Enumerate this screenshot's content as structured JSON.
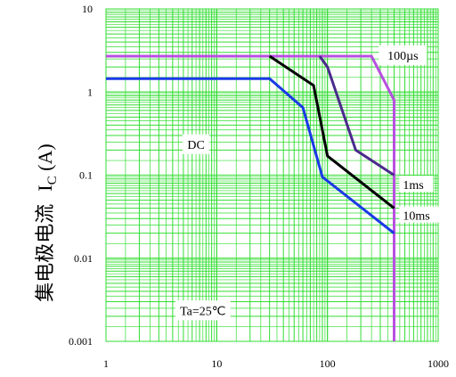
{
  "chart_data": {
    "type": "line",
    "x_scale": "log",
    "y_scale": "log",
    "xlim": [
      1,
      1000
    ],
    "ylim": [
      0.001,
      10
    ],
    "grid": true,
    "x_ticks": [
      "1",
      "10",
      "100",
      "1000"
    ],
    "y_ticks": [
      "10",
      "1",
      "0.1",
      "0.01",
      "0.001"
    ],
    "ylabel_cn": "集电极电流",
    "ylabel_symbol": "I",
    "ylabel_sub": "C",
    "ylabel_unit": " (A)",
    "xlabel": "",
    "title": "",
    "series": [
      {
        "name": "100µs",
        "color": "#b84fe0",
        "points": [
          [
            1,
            2.7
          ],
          [
            250,
            2.7
          ],
          [
            400,
            0.8
          ],
          [
            400,
            0.001
          ]
        ]
      },
      {
        "name": "1ms",
        "color": "#4b2a8c",
        "points": [
          [
            85,
            2.7
          ],
          [
            100,
            2.0
          ],
          [
            180,
            0.2
          ],
          [
            400,
            0.1
          ]
        ]
      },
      {
        "name": "10ms",
        "color": "#000000",
        "points": [
          [
            30,
            2.7
          ],
          [
            75,
            1.2
          ],
          [
            100,
            0.17
          ],
          [
            400,
            0.04
          ]
        ]
      },
      {
        "name": "DC",
        "color": "#1a39e6",
        "points": [
          [
            1,
            1.45
          ],
          [
            30,
            1.45
          ],
          [
            60,
            0.65
          ],
          [
            90,
            0.095
          ],
          [
            400,
            0.02
          ]
        ]
      }
    ],
    "annotations": [
      {
        "id": "100us",
        "text": "100µs",
        "color": "#b84fe0",
        "x": 480,
        "y": 2.7
      },
      {
        "id": "dc",
        "text": "DC",
        "color": "#1a39e6",
        "x": 6.5,
        "y": 0.23
      },
      {
        "id": "1ms",
        "text": "1ms",
        "color": "#000000",
        "x": 600,
        "y": 0.075
      },
      {
        "id": "10ms",
        "text": "10ms",
        "color": "#000000",
        "x": 600,
        "y": 0.032
      },
      {
        "id": "ta",
        "text": "Ta=25℃",
        "color": "#1a39e6",
        "x": 7.5,
        "y": 0.0023
      }
    ],
    "grid_color": "#33dd33"
  }
}
